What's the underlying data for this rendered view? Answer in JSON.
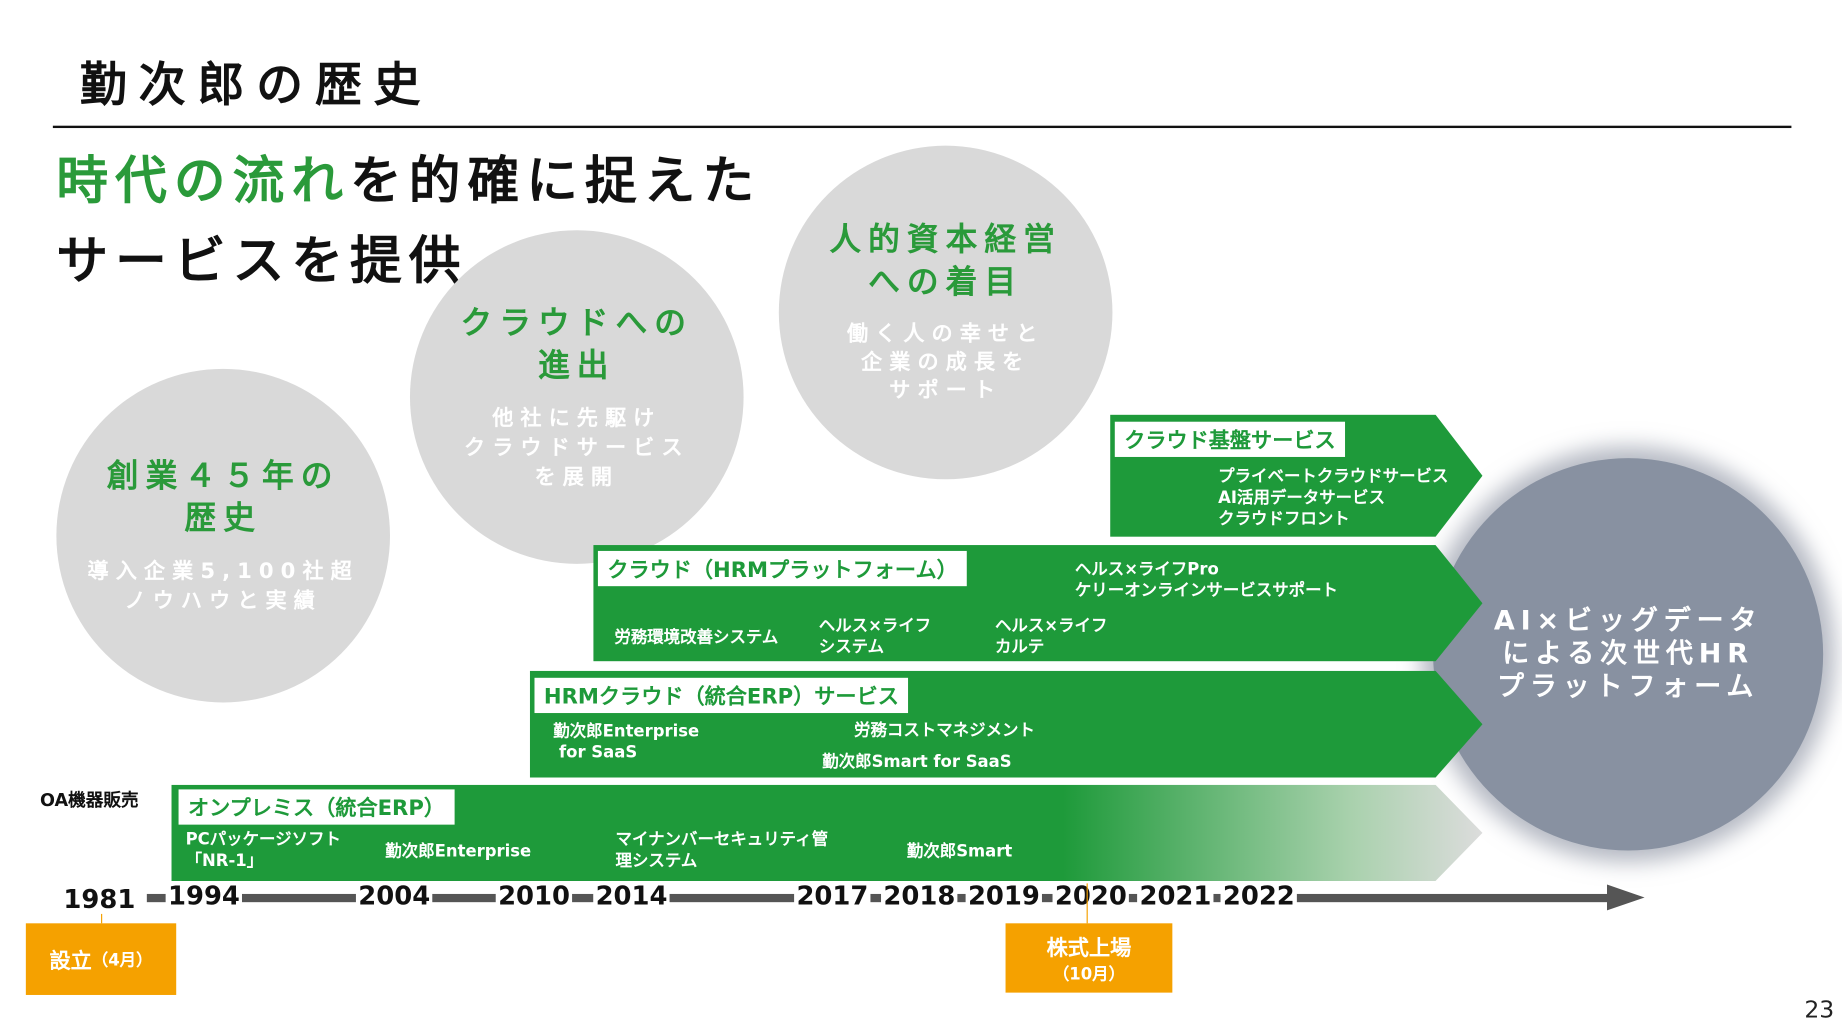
{
  "title": "勤次郎の歴史",
  "headline": {
    "green": "時代の流れ",
    "rest": "を的確に捉えた",
    "line2": "サービスを提供"
  },
  "circles": [
    {
      "title1": "創業４５年の",
      "title2": "歴史",
      "sub1": "導入企業5,100社超",
      "sub2": "ノウハウと実績"
    },
    {
      "title1": "クラウドへの",
      "title2": "進出",
      "sub1": "他社に先駆け",
      "sub2": "クラウドサービス",
      "sub3": "を展開"
    },
    {
      "title1": "人的資本経営",
      "title2": "への着目",
      "sub1": "働く人の幸せと",
      "sub2": "企業の成長を",
      "sub3": "サポート"
    }
  ],
  "future": {
    "line1": "AI×ビッグデータ",
    "line2": "による次世代HR",
    "line3": "プラットフォーム"
  },
  "bands": {
    "cloud_infra": {
      "label": "クラウド基盤サービス",
      "items": [
        "プライベートクラウドサービス",
        "AI活用データサービス",
        "クラウドフロント"
      ]
    },
    "cloud_hrm": {
      "label": "クラウド（HRMプラットフォーム）",
      "items": [
        "労務環境改善システム",
        "ヘルス×ライフ",
        "システム",
        "ヘルス×ライフ",
        "カルテ",
        "ヘルス×ライフPro",
        "ケリーオンラインサービスサポート"
      ]
    },
    "hrm_cloud": {
      "label": "HRMクラウド（統合ERP）サービス",
      "items": [
        "勤次郎Enterprise",
        "for SaaS",
        "労務コストマネジメント",
        "勤次郎Smart for SaaS"
      ]
    },
    "onprem": {
      "label": "オンプレミス（統合ERP）",
      "items": [
        "PCパッケージソフト",
        "「NR-1」",
        "勤次郎Enterprise",
        "マイナンバーセキュリティ管",
        "理システム",
        "勤次郎Smart"
      ]
    }
  },
  "oa_label": "OA機器販売",
  "years": [
    "1981",
    "1994",
    "2004",
    "2010",
    "2014",
    "2017",
    "2018",
    "2019",
    "2020",
    "2021",
    "2022"
  ],
  "milestones": {
    "founding": {
      "label": "設立",
      "sub": "（4月）"
    },
    "listing": {
      "label": "株式上場",
      "sub": "（10月）"
    }
  },
  "page_number": "23",
  "colors": {
    "green": "#1e9a3a",
    "orange": "#f5a100",
    "gray_circle": "#d9d9d9",
    "future_circle": "#8891a1"
  }
}
